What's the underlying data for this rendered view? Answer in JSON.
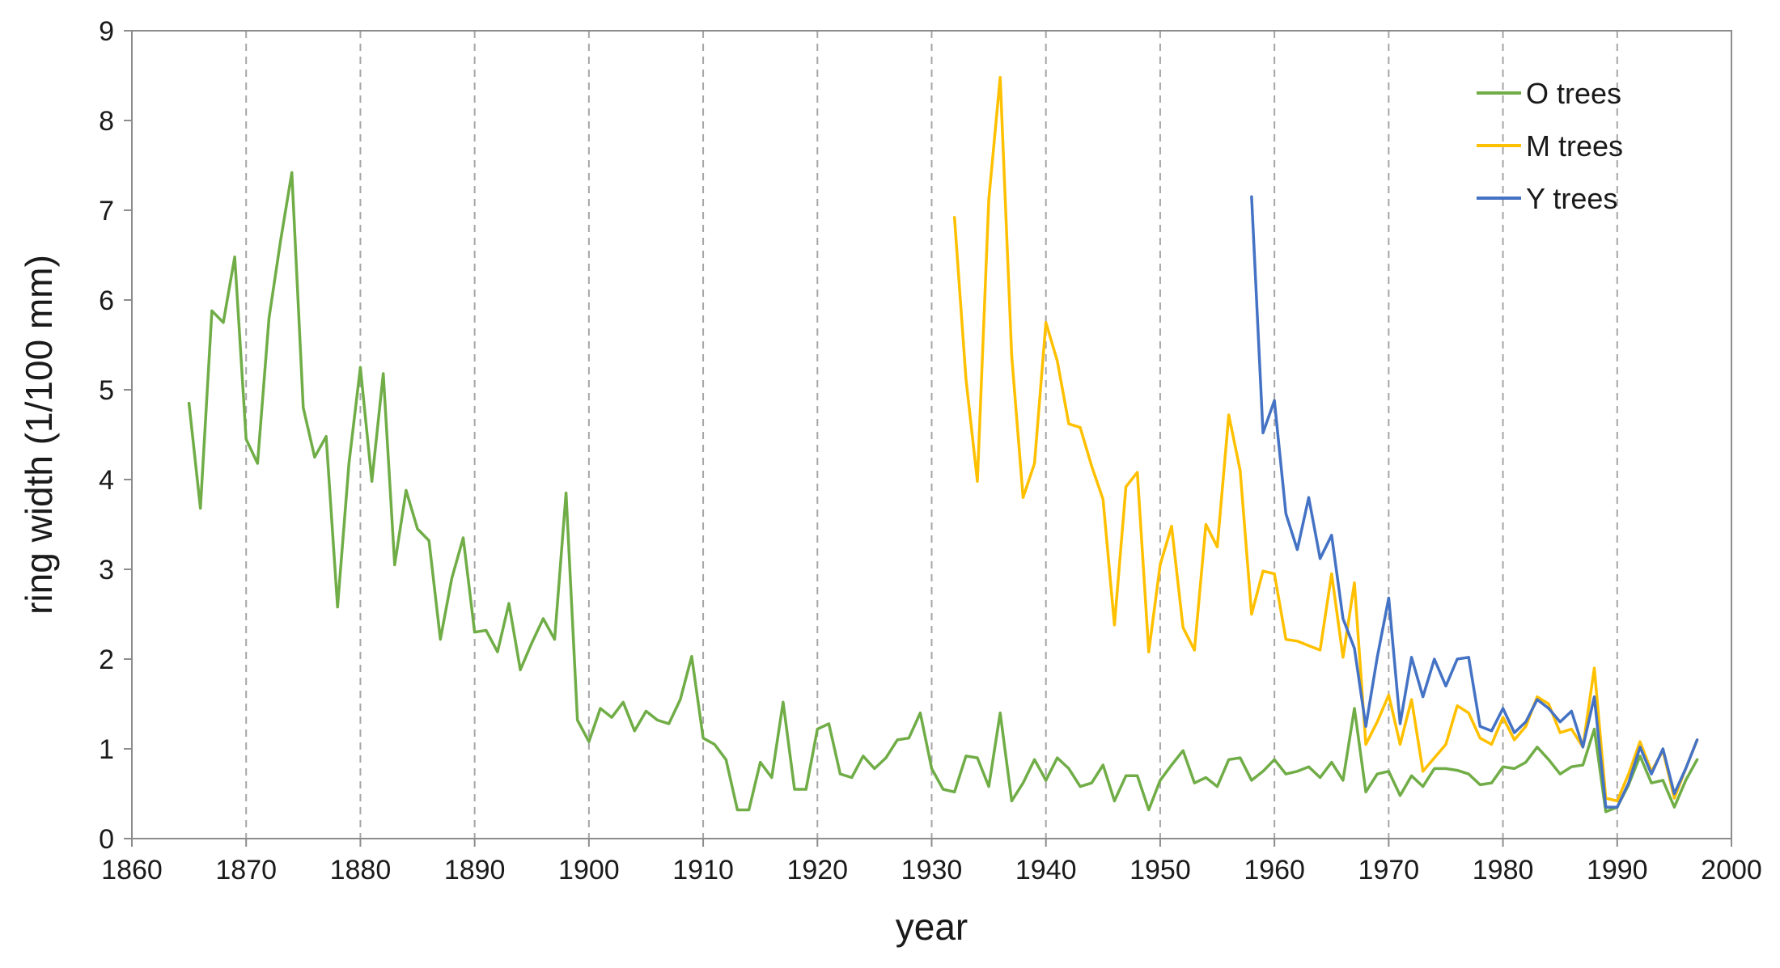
{
  "chart_data": {
    "type": "line",
    "xlabel": "year",
    "ylabel": "ring width (1/100 mm)",
    "xlim": [
      1860,
      2000
    ],
    "ylim": [
      0,
      9
    ],
    "x_ticks": [
      1860,
      1870,
      1880,
      1890,
      1900,
      1910,
      1920,
      1930,
      1940,
      1950,
      1960,
      1970,
      1980,
      1990,
      2000
    ],
    "y_ticks": [
      0,
      1,
      2,
      3,
      4,
      5,
      6,
      7,
      8,
      9
    ],
    "x_ticks_text": [
      "1860",
      "1870",
      "1880",
      "1890",
      "1900",
      "1910",
      "1920",
      "1930",
      "1940",
      "1950",
      "1960",
      "1970",
      "1980",
      "1990",
      "2000"
    ],
    "y_ticks_text": [
      "0",
      "1",
      "2",
      "3",
      "4",
      "5",
      "6",
      "7",
      "8",
      "9"
    ],
    "grid": "vertical dashed at each decade",
    "legend_position": "top-right",
    "series": [
      {
        "name": "O trees",
        "color": "#70ad47",
        "x": [
          1865,
          1866,
          1867,
          1868,
          1869,
          1870,
          1871,
          1872,
          1873,
          1874,
          1875,
          1876,
          1877,
          1878,
          1879,
          1880,
          1881,
          1882,
          1883,
          1884,
          1885,
          1886,
          1887,
          1888,
          1889,
          1890,
          1891,
          1892,
          1893,
          1894,
          1895,
          1896,
          1897,
          1898,
          1899,
          1900,
          1901,
          1902,
          1903,
          1904,
          1905,
          1906,
          1907,
          1908,
          1909,
          1910,
          1911,
          1912,
          1913,
          1914,
          1915,
          1916,
          1917,
          1918,
          1919,
          1920,
          1921,
          1922,
          1923,
          1924,
          1925,
          1926,
          1927,
          1928,
          1929,
          1930,
          1931,
          1932,
          1933,
          1934,
          1935,
          1936,
          1937,
          1938,
          1939,
          1940,
          1941,
          1942,
          1943,
          1944,
          1945,
          1946,
          1947,
          1948,
          1949,
          1950,
          1951,
          1952,
          1953,
          1954,
          1955,
          1956,
          1957,
          1958,
          1959,
          1960,
          1961,
          1962,
          1963,
          1964,
          1965,
          1966,
          1967,
          1968,
          1969,
          1970,
          1971,
          1972,
          1973,
          1974,
          1975,
          1976,
          1977,
          1978,
          1979,
          1980,
          1981,
          1982,
          1983,
          1984,
          1985,
          1986,
          1987,
          1988,
          1989,
          1990,
          1991,
          1992,
          1993,
          1994,
          1995,
          1996,
          1997
        ],
        "values": [
          4.85,
          3.68,
          5.88,
          5.75,
          6.48,
          4.45,
          4.18,
          5.8,
          6.65,
          7.42,
          4.8,
          4.25,
          4.48,
          2.58,
          4.18,
          5.25,
          3.98,
          5.18,
          3.05,
          3.88,
          3.45,
          3.32,
          2.22,
          2.9,
          3.35,
          2.3,
          2.32,
          2.08,
          2.62,
          1.88,
          2.18,
          2.45,
          2.22,
          3.85,
          1.32,
          1.08,
          1.45,
          1.35,
          1.52,
          1.2,
          1.42,
          1.32,
          1.28,
          1.55,
          2.03,
          1.12,
          1.05,
          0.88,
          0.32,
          0.32,
          0.85,
          0.68,
          1.52,
          0.55,
          0.55,
          1.22,
          1.28,
          0.72,
          0.68,
          0.92,
          0.78,
          0.9,
          1.1,
          1.12,
          1.4,
          0.78,
          0.55,
          0.52,
          0.92,
          0.9,
          0.58,
          1.4,
          0.42,
          0.62,
          0.88,
          0.65,
          0.9,
          0.78,
          0.58,
          0.62,
          0.82,
          0.42,
          0.7,
          0.7,
          0.32,
          0.65,
          0.82,
          0.98,
          0.62,
          0.68,
          0.58,
          0.88,
          0.9,
          0.65,
          0.75,
          0.88,
          0.72,
          0.75,
          0.8,
          0.68,
          0.85,
          0.65,
          1.45,
          0.52,
          0.72,
          0.75,
          0.48,
          0.7,
          0.58,
          0.78,
          0.78,
          0.76,
          0.72,
          0.6,
          0.62,
          0.8,
          0.78,
          0.85,
          1.02,
          0.88,
          0.72,
          0.8,
          0.82,
          1.22,
          0.3,
          0.35,
          0.6,
          0.92,
          0.62,
          0.65,
          0.35,
          0.65,
          0.88
        ]
      },
      {
        "name": "M trees",
        "color": "#ffc000",
        "x": [
          1932,
          1933,
          1934,
          1935,
          1936,
          1937,
          1938,
          1939,
          1940,
          1941,
          1942,
          1943,
          1944,
          1945,
          1946,
          1947,
          1948,
          1949,
          1950,
          1951,
          1952,
          1953,
          1954,
          1955,
          1956,
          1957,
          1958,
          1959,
          1960,
          1961,
          1962,
          1963,
          1964,
          1965,
          1966,
          1967,
          1968,
          1969,
          1970,
          1971,
          1972,
          1973,
          1974,
          1975,
          1976,
          1977,
          1978,
          1979,
          1980,
          1981,
          1982,
          1983,
          1984,
          1985,
          1986,
          1987,
          1988,
          1989,
          1990,
          1991,
          1992,
          1993,
          1994,
          1995,
          1996,
          1997
        ],
        "values": [
          6.92,
          5.12,
          3.98,
          7.12,
          8.48,
          5.38,
          3.8,
          4.18,
          5.75,
          5.32,
          4.62,
          4.58,
          4.15,
          3.78,
          2.38,
          3.92,
          4.08,
          2.08,
          3.05,
          3.48,
          2.35,
          2.1,
          3.5,
          3.25,
          4.72,
          4.1,
          2.5,
          2.98,
          2.95,
          2.22,
          2.2,
          2.15,
          2.1,
          2.95,
          2.02,
          2.85,
          1.05,
          1.3,
          1.6,
          1.05,
          1.55,
          0.75,
          0.9,
          1.05,
          1.48,
          1.4,
          1.12,
          1.05,
          1.35,
          1.1,
          1.25,
          1.58,
          1.5,
          1.18,
          1.22,
          1.02,
          1.9,
          0.45,
          0.42,
          0.72,
          1.08,
          0.75,
          0.98,
          0.45,
          0.78,
          1.1
        ]
      },
      {
        "name": "Y trees",
        "color": "#4472c4",
        "x": [
          1958,
          1959,
          1960,
          1961,
          1962,
          1963,
          1964,
          1965,
          1966,
          1967,
          1968,
          1969,
          1970,
          1971,
          1972,
          1973,
          1974,
          1975,
          1976,
          1977,
          1978,
          1979,
          1980,
          1981,
          1982,
          1983,
          1984,
          1985,
          1986,
          1987,
          1988,
          1989,
          1990,
          1991,
          1992,
          1993,
          1994,
          1995,
          1996,
          1997
        ],
        "values": [
          7.15,
          4.52,
          4.88,
          3.62,
          3.22,
          3.8,
          3.12,
          3.38,
          2.45,
          2.12,
          1.25,
          2.02,
          2.68,
          1.28,
          2.02,
          1.58,
          2.0,
          1.7,
          2.0,
          2.02,
          1.25,
          1.2,
          1.45,
          1.18,
          1.3,
          1.55,
          1.45,
          1.3,
          1.42,
          1.02,
          1.58,
          0.35,
          0.35,
          0.62,
          1.02,
          0.72,
          1.0,
          0.5,
          0.78,
          1.1
        ]
      }
    ]
  }
}
